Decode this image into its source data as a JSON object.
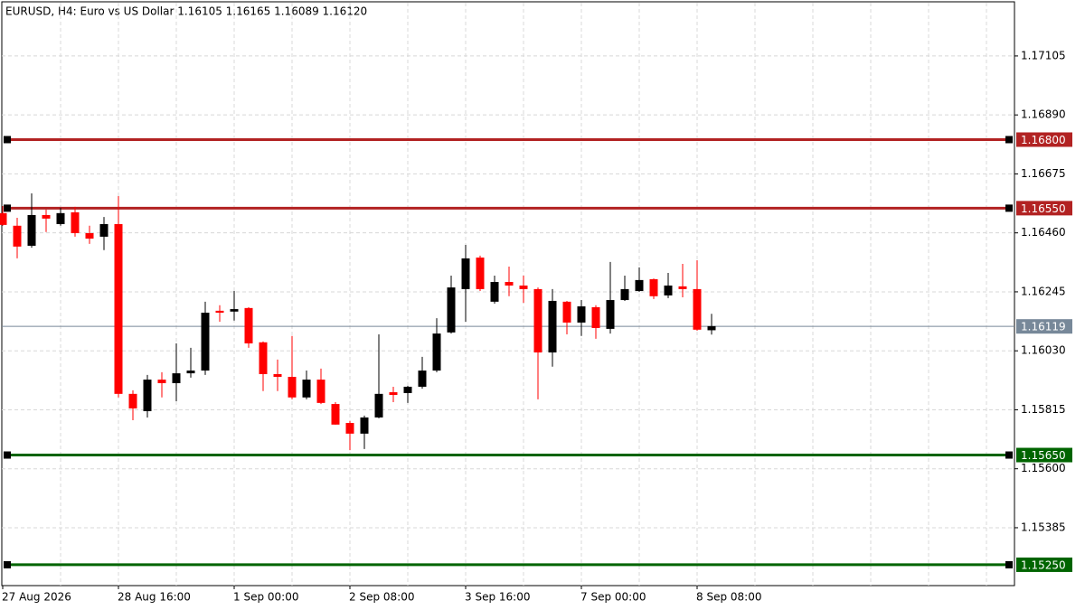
{
  "chart_data": {
    "type": "candlestick",
    "title": "EURUSD, H4:  Euro vs US Dollar  1.16105 1.16165 1.16089 1.16120",
    "categories": [
      "27 Aug 2026",
      null,
      null,
      null,
      null,
      null,
      null,
      null,
      "28 Aug 16:00",
      null,
      null,
      null,
      null,
      null,
      null,
      null,
      "1 Sep 00:00",
      null,
      null,
      null,
      null,
      null,
      null,
      null,
      "2 Sep 08:00",
      null,
      null,
      null,
      null,
      null,
      null,
      null,
      "3 Sep 16:00",
      null,
      null,
      null,
      null,
      null,
      null,
      null,
      "7 Sep 00:00",
      null,
      null,
      null,
      null,
      null,
      null,
      null,
      "8 Sep 08:00",
      null
    ],
    "open": [
      1.16532,
      1.16486,
      1.16413,
      1.16525,
      1.16492,
      1.16535,
      1.16459,
      1.16446,
      1.16492,
      1.15873,
      1.1581,
      1.15925,
      1.15912,
      1.15948,
      1.15958,
      1.16176,
      1.16173,
      1.16186,
      1.16061,
      1.15945,
      1.15935,
      1.1586,
      1.15925,
      1.15836,
      1.15767,
      1.15728,
      1.15787,
      1.15879,
      1.15876,
      1.15899,
      1.15958,
      1.16097,
      1.16255,
      1.1637,
      1.16209,
      1.16281,
      1.16268,
      1.16255,
      1.16024,
      1.16209,
      1.16133,
      1.16189,
      1.1611,
      1.16215,
      1.16248,
      1.16291,
      1.16232,
      1.16265,
      1.16255,
      1.16105
    ],
    "high": [
      1.16558,
      1.16515,
      1.16604,
      1.16545,
      1.16551,
      1.16555,
      1.16486,
      1.16518,
      1.16594,
      1.15886,
      1.15942,
      1.15952,
      1.16057,
      1.16041,
      1.16209,
      1.16196,
      1.16248,
      1.16189,
      1.16064,
      1.15998,
      1.16084,
      1.15958,
      1.15965,
      1.15843,
      1.15774,
      1.15794,
      1.1609,
      1.15899,
      1.15902,
      1.16008,
      1.16149,
      1.16304,
      1.16416,
      1.16377,
      1.16304,
      1.16337,
      1.16304,
      1.16261,
      1.16255,
      1.16212,
      1.16215,
      1.16196,
      1.16354,
      1.16304,
      1.16334,
      1.16294,
      1.16314,
      1.16347,
      1.1636,
      1.16165
    ],
    "low": [
      1.16486,
      1.16367,
      1.16406,
      1.16463,
      1.16486,
      1.16446,
      1.1642,
      1.16397,
      1.1586,
      1.15777,
      1.15787,
      1.1586,
      1.15846,
      1.15932,
      1.15942,
      1.16136,
      1.1614,
      1.16041,
      1.15883,
      1.15883,
      1.15853,
      1.15853,
      1.15836,
      1.15761,
      1.15668,
      1.15672,
      1.15784,
      1.15843,
      1.1584,
      1.15892,
      1.15952,
      1.16093,
      1.16136,
      1.16248,
      1.16202,
      1.16229,
      1.16205,
      1.15853,
      1.15972,
      1.1609,
      1.16084,
      1.16074,
      1.16093,
      1.16212,
      1.16245,
      1.16219,
      1.16222,
      1.16225,
      1.16103,
      1.16089
    ],
    "close": [
      1.16489,
      1.1641,
      1.16525,
      1.16512,
      1.16532,
      1.16459,
      1.16439,
      1.16492,
      1.15873,
      1.1582,
      1.15925,
      1.15912,
      1.15948,
      1.15958,
      1.16169,
      1.16169,
      1.16182,
      1.16057,
      1.15945,
      1.15935,
      1.1586,
      1.15925,
      1.1584,
      1.15761,
      1.15728,
      1.15787,
      1.15873,
      1.15869,
      1.15899,
      1.15958,
      1.16093,
      1.16261,
      1.16367,
      1.16255,
      1.16281,
      1.16268,
      1.16255,
      1.16024,
      1.16212,
      1.16133,
      1.16192,
      1.16113,
      1.16215,
      1.16255,
      1.16288,
      1.16229,
      1.16268,
      1.16255,
      1.16107,
      1.1612
    ],
    "up_color": "#000000",
    "down_color": "#ff0000",
    "ylim": [
      1.15174,
      1.17309
    ],
    "yticks": [
      1.17105,
      {
        "value": 1.1689,
        "label": "1.16890"
      },
      1.16675,
      {
        "value": 1.1646,
        "label": "1.16460"
      },
      1.16245,
      {
        "value": 1.1603,
        "label": "1.16030"
      },
      1.15815,
      {
        "value": 1.156,
        "label": "1.15600"
      },
      1.15385
    ],
    "grid": true,
    "levels": [
      {
        "value": 1.168,
        "label": "1.16800",
        "color": "#b22222"
      },
      {
        "value": 1.1655,
        "label": "1.16550",
        "color": "#b22222"
      },
      {
        "value": 1.1565,
        "label": "1.15650",
        "color": "#006400"
      },
      {
        "value": 1.1525,
        "label": "1.15250",
        "color": "#006400"
      }
    ],
    "current_price": {
      "value": 1.16119,
      "label": "1.16119",
      "color": "#778899"
    }
  }
}
